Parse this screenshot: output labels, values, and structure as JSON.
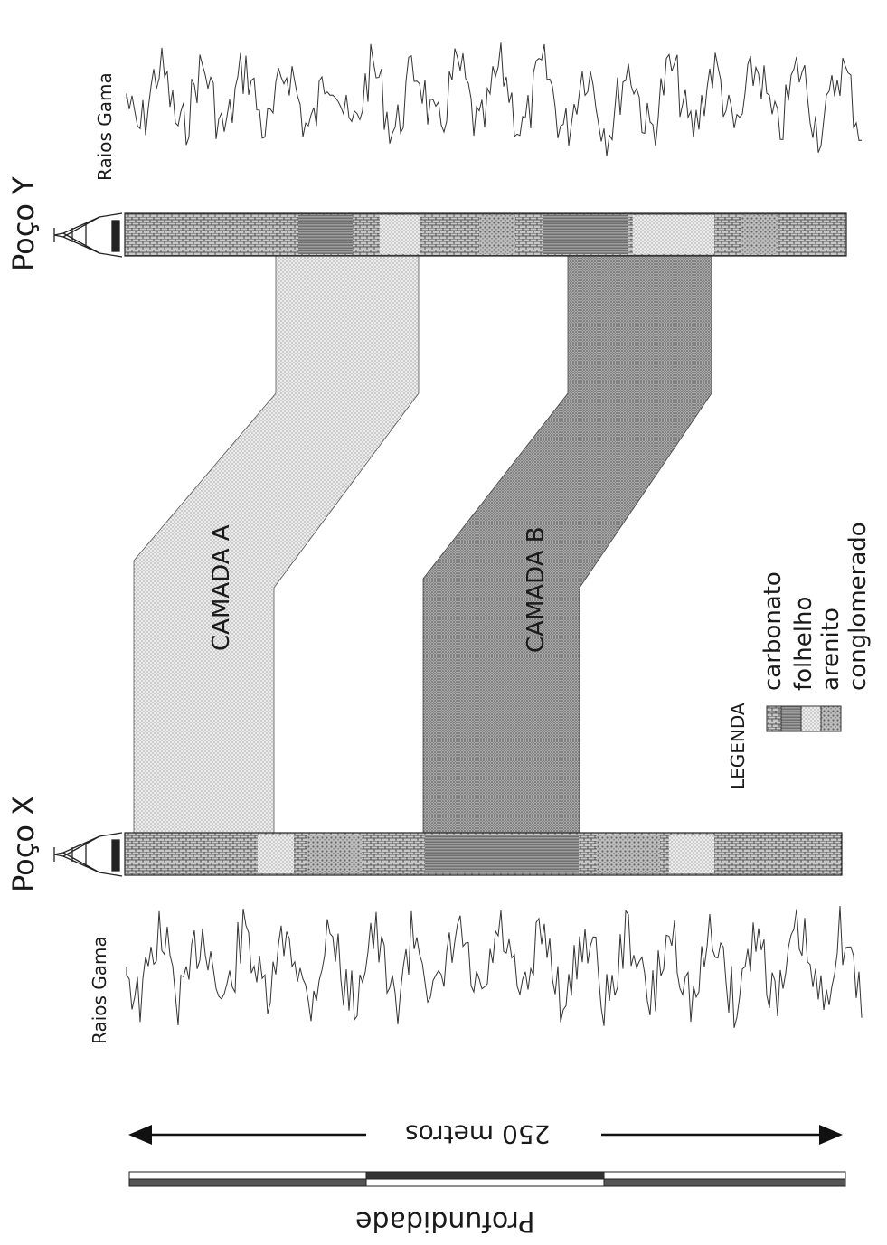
{
  "wells": {
    "y_label": "Poço Y",
    "x_label": "Poço X"
  },
  "logs": {
    "top_label": "Raios Gama",
    "bottom_label": "Raios Gama"
  },
  "layers": {
    "a_label": "CAMADA  A",
    "b_label": "CAMADA  B"
  },
  "legend": {
    "title": "LEGENDA",
    "items": [
      {
        "label": "carbonato",
        "pattern": "grid"
      },
      {
        "label": "folhelho",
        "pattern": "dense-hatch"
      },
      {
        "label": "arenito",
        "pattern": "light-dots"
      },
      {
        "label": "conglomerado",
        "pattern": "coarse-dots"
      }
    ]
  },
  "scale": {
    "distance_label": "250 metros",
    "depth_label": "Profundidade"
  },
  "colors": {
    "layer_a": "#d9d9d9",
    "layer_b": "#9a9a9a",
    "line": "#222222"
  }
}
